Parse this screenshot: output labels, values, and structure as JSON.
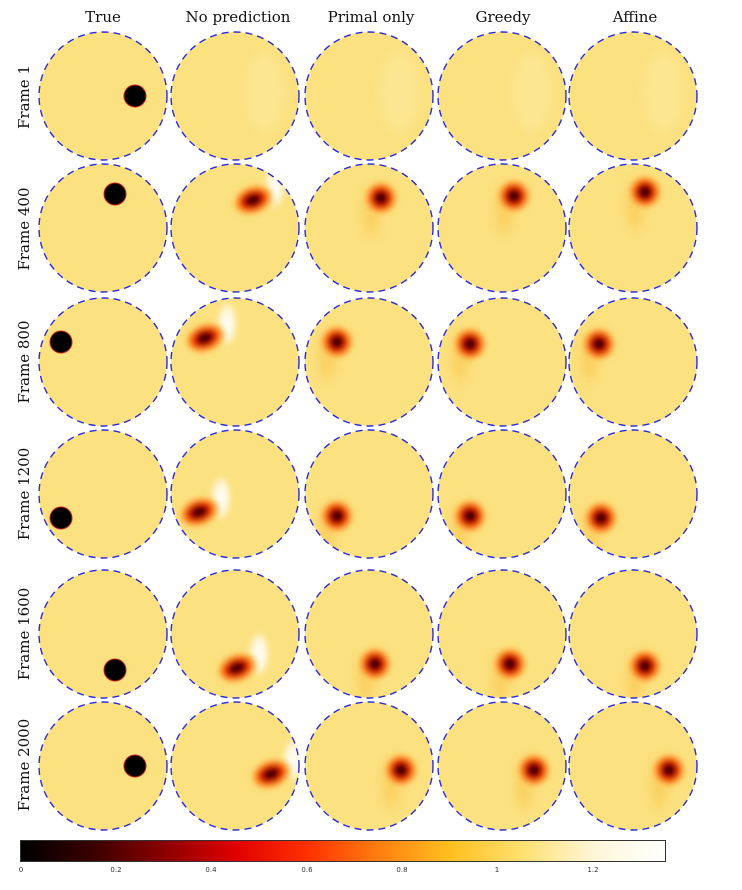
{
  "columns": [
    "True",
    "No prediction",
    "Primal only",
    "Greedy",
    "Affine"
  ],
  "rows": [
    "Frame 1",
    "Frame 400",
    "Frame 800",
    "Frame 1200",
    "Frame 1600",
    "Frame 2000"
  ],
  "colorbar": {
    "ticks": [
      "0",
      "0.2",
      "0.4",
      "0.6",
      "0.8",
      "1",
      "1.2"
    ],
    "range": [
      0,
      1.35
    ],
    "stops": [
      "#000000",
      "#3a0000",
      "#8b0000",
      "#e00000",
      "#ff3000",
      "#ff7f10",
      "#ffc020",
      "#ffe070",
      "#fff6d8",
      "#ffffff"
    ]
  },
  "colors": {
    "background_field": "#fbe17f",
    "inclusion": "#000000",
    "boundary_dash": "#2b2bd6"
  }
}
